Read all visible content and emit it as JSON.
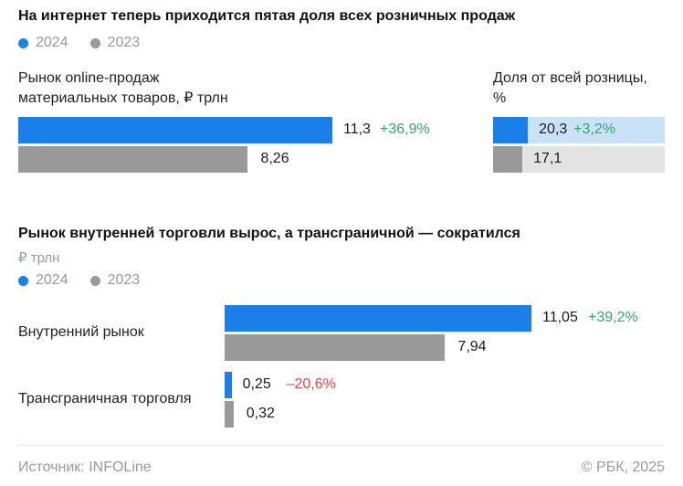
{
  "colors": {
    "y2024": "#1a7fe8",
    "y2023": "#999999",
    "share_track_2024": "#c9e2f7",
    "share_track_2023": "#e3e3e3",
    "positive": "#2fa96b",
    "negative": "#e0474c"
  },
  "section1": {
    "title": "На интернет теперь приходится пятая доля всех розничных продаж",
    "legend": [
      "2024",
      "2023"
    ]
  },
  "section2": {
    "title": "Рынок внутренней торговли вырос, а трансграничной — сократился",
    "unit": "₽ трлн",
    "legend": [
      "2024",
      "2023"
    ]
  },
  "footer": {
    "source": "Источник: INFOLine",
    "copyright": "© РБК, 2025"
  },
  "chart_data": [
    {
      "type": "bar",
      "orientation": "horizontal",
      "subtitle_line1": "Рынок online-продаж",
      "subtitle_line2": "материальных товаров, ₽ трлн",
      "series": [
        {
          "name": "2024",
          "values": [
            11.3
          ],
          "labels": [
            "11,3"
          ],
          "change": "+36,9%"
        },
        {
          "name": "2023",
          "values": [
            8.26
          ],
          "labels": [
            "8,26"
          ]
        }
      ]
    },
    {
      "type": "bar",
      "orientation": "horizontal",
      "subtitle_line1": "Доля от всей розницы,",
      "subtitle_line2": "%",
      "xlim": [
        0,
        100
      ],
      "series": [
        {
          "name": "2024",
          "values": [
            20.3
          ],
          "labels": [
            "20,3"
          ],
          "change": "+3,2%"
        },
        {
          "name": "2023",
          "values": [
            17.1
          ],
          "labels": [
            "17,1"
          ]
        }
      ]
    },
    {
      "type": "bar",
      "orientation": "horizontal",
      "categories": [
        "Внутренний рынок",
        "Трансграничная торговля"
      ],
      "series": [
        {
          "name": "2024",
          "values": [
            11.05,
            0.25
          ],
          "labels": [
            "11,05",
            "0,25"
          ],
          "change": [
            "+39,2%",
            "–20,6%"
          ]
        },
        {
          "name": "2023",
          "values": [
            7.94,
            0.32
          ],
          "labels": [
            "7,94",
            "0,32"
          ]
        }
      ]
    }
  ]
}
